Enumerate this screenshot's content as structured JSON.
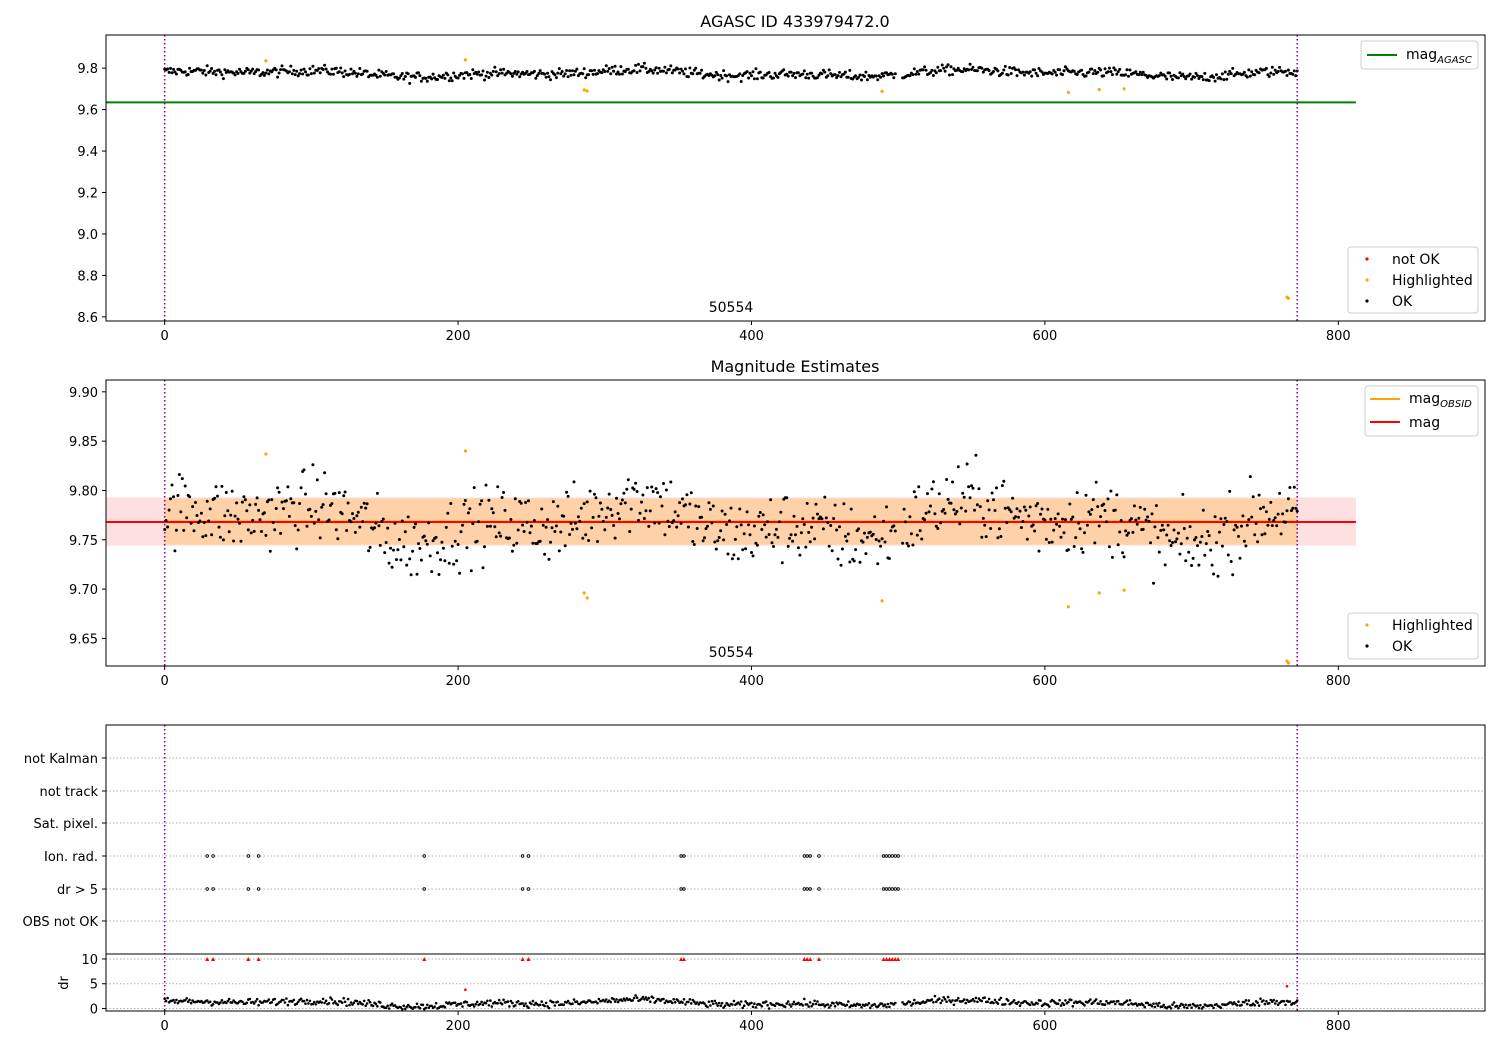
{
  "chart_data": [
    {
      "type": "scatter",
      "title": "AGASC ID 433979472.0",
      "xlim": [
        -40,
        900
      ],
      "ylim": [
        8.58,
        9.96
      ],
      "xticks": [
        0,
        200,
        400,
        600,
        800
      ],
      "yticks": [
        8.6,
        8.8,
        9.0,
        9.2,
        9.4,
        9.6,
        9.8
      ],
      "ytick_labels": [
        "8.6",
        "8.8",
        "9.0",
        "9.2",
        "9.4",
        "9.6",
        "9.8"
      ],
      "vlines": [
        0,
        772
      ],
      "annotation": {
        "text": "50554",
        "x": 386,
        "y": 8.615
      },
      "hline": {
        "name_main": "mag",
        "name_sub": "AGASC",
        "y": 9.635,
        "x_range": [
          -40,
          812
        ],
        "color": "#008000"
      },
      "point_legend": {
        "not_ok": "not OK",
        "highlighted": "Highlighted",
        "ok": "OK"
      },
      "base_series": {
        "n": 772,
        "center": 9.775,
        "amp": 0.02,
        "jitter": 0.012,
        "gaps": [
          [
            498,
            503
          ]
        ]
      },
      "highlighted_points": [
        [
          69,
          9.835
        ],
        [
          205,
          9.84
        ],
        [
          286,
          9.695
        ],
        [
          288,
          9.69
        ],
        [
          489,
          9.688
        ],
        [
          616,
          9.683
        ],
        [
          637,
          9.697
        ],
        [
          654,
          9.7
        ],
        [
          765,
          8.695
        ],
        [
          766,
          8.69
        ]
      ],
      "colors": {
        "ok": "#000000",
        "highlighted": "#ffa500",
        "not_ok": "#ff0000",
        "vline": "#800080"
      }
    },
    {
      "type": "scatter",
      "title": "Magnitude Estimates",
      "xlim": [
        -40,
        900
      ],
      "ylim": [
        9.622,
        9.912
      ],
      "xticks": [
        0,
        200,
        400,
        600,
        800
      ],
      "yticks": [
        9.65,
        9.7,
        9.75,
        9.8,
        9.85,
        9.9
      ],
      "ytick_labels": [
        "9.65",
        "9.70",
        "9.75",
        "9.80",
        "9.85",
        "9.90"
      ],
      "vlines": [
        0,
        772
      ],
      "annotation": {
        "text": "50554",
        "x": 386,
        "y": 9.632
      },
      "mag_obsid": {
        "name_main": "mag",
        "name_sub": "OBSID",
        "y": 9.7685,
        "band": [
          9.745,
          9.792
        ],
        "x_range": [
          0,
          772
        ],
        "color": "#ffa500"
      },
      "mag": {
        "name": "mag",
        "y": 9.768,
        "band": [
          9.744,
          9.793
        ],
        "x_range": [
          -40,
          812
        ],
        "color": "#ff0000"
      },
      "point_legend": {
        "highlighted": "Highlighted",
        "ok": "OK"
      },
      "base_series": {
        "n": 772,
        "center": 9.768,
        "amp": 0.025,
        "jitter": 0.018,
        "gaps": [
          [
            498,
            503
          ]
        ]
      },
      "highlighted_points": [
        [
          69,
          9.837
        ],
        [
          205,
          9.84
        ],
        [
          286,
          9.696
        ],
        [
          288,
          9.691
        ],
        [
          489,
          9.688
        ],
        [
          616,
          9.682
        ],
        [
          637,
          9.696
        ],
        [
          654,
          9.699
        ],
        [
          765,
          9.627
        ],
        [
          766,
          9.625
        ]
      ],
      "colors": {
        "ok": "#000000",
        "highlighted": "#ffa500",
        "vline": "#800080"
      }
    },
    {
      "type": "scatter",
      "title": "",
      "xlim": [
        -40,
        900
      ],
      "vlines": [
        0,
        772
      ],
      "flag_rows": [
        "not Kalman",
        "not track",
        "Sat. pixel.",
        "Ion. rad.",
        "dr > 5",
        "OBS not OK"
      ],
      "flag_x": {
        "Ion. rad.": [
          29,
          33,
          57,
          64,
          177,
          244,
          248,
          352,
          354,
          436,
          438,
          440,
          446,
          490,
          492,
          494,
          496,
          498,
          500
        ],
        "dr > 5": [
          29,
          33,
          57,
          64,
          177,
          244,
          248,
          352,
          354,
          436,
          438,
          440,
          446,
          490,
          492,
          494,
          496,
          498,
          500
        ]
      },
      "dr": {
        "ylabel": "dr",
        "ylim": [
          -0.5,
          11
        ],
        "yticks": [
          0,
          5,
          10
        ],
        "ytick_labels": [
          "0",
          "5",
          "10"
        ],
        "clip_value": 10,
        "base_series": {
          "n": 772,
          "center": 1.1,
          "amp": 0.7,
          "jitter": 0.35,
          "gaps": [
            [
              498,
              503
            ]
          ]
        },
        "outliers_red": [
          [
            205,
            3.8
          ],
          [
            765,
            4.5
          ]
        ]
      },
      "xticks": [
        0,
        200,
        400,
        600,
        800
      ],
      "colors": {
        "ok": "#000000",
        "not_ok": "#ff0000",
        "vline": "#800080"
      }
    }
  ]
}
